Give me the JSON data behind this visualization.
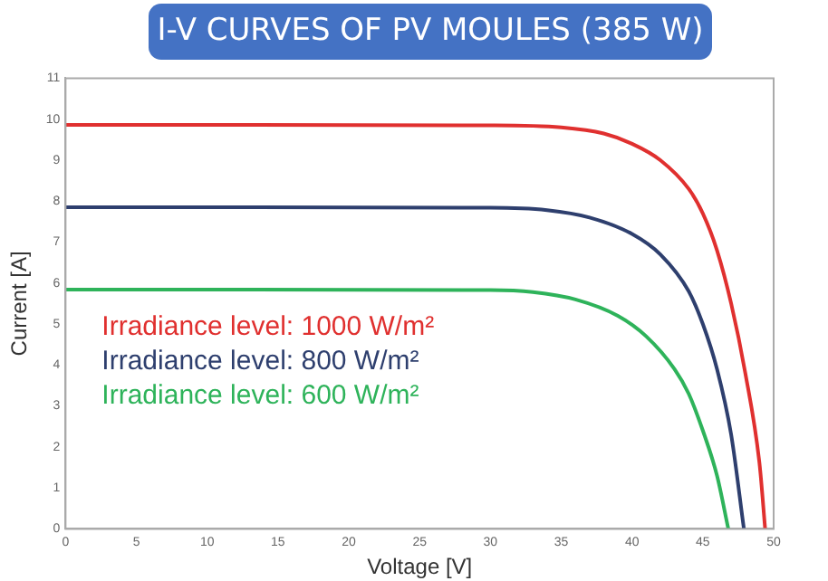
{
  "chart_data": {
    "type": "line",
    "title": "I-V CURVES OF PV MOULES (385 W)",
    "xlabel": "Voltage [V]",
    "ylabel": "Current [A]",
    "xlim": [
      0,
      50
    ],
    "xticks": [
      0,
      5,
      10,
      15,
      20,
      25,
      30,
      35,
      40,
      45,
      50
    ],
    "ylim": [
      0,
      11
    ],
    "yticks": [
      0,
      1,
      2,
      3,
      4,
      5,
      6,
      7,
      8,
      9,
      10,
      11
    ],
    "grid": false,
    "legend": "left",
    "marker": "none",
    "line_style": "solid",
    "series": [
      {
        "name": "Irradiance level: 1000 W/m²",
        "color": "#e0302f",
        "x": [
          0,
          30,
          35,
          38,
          40,
          42,
          44,
          45,
          46,
          47,
          48,
          49,
          49.4
        ],
        "values": [
          9.86,
          9.85,
          9.8,
          9.65,
          9.4,
          9.0,
          8.3,
          7.7,
          6.8,
          5.5,
          3.8,
          1.6,
          0
        ]
      },
      {
        "name": "Irradiance level: 800 W/m²",
        "color": "#2e3f6e",
        "x": [
          0,
          30,
          34,
          37,
          40,
          42,
          44,
          45,
          46,
          47,
          47.9
        ],
        "values": [
          7.85,
          7.84,
          7.78,
          7.6,
          7.2,
          6.7,
          5.8,
          5.0,
          3.9,
          2.3,
          0
        ]
      },
      {
        "name": "Irradiance level: 600 W/m²",
        "color": "#2eb35a",
        "x": [
          0,
          30,
          33,
          36,
          39,
          41,
          43,
          44,
          45,
          46,
          46.8
        ],
        "values": [
          5.84,
          5.83,
          5.78,
          5.6,
          5.2,
          4.7,
          3.9,
          3.3,
          2.4,
          1.3,
          0
        ]
      }
    ]
  }
}
